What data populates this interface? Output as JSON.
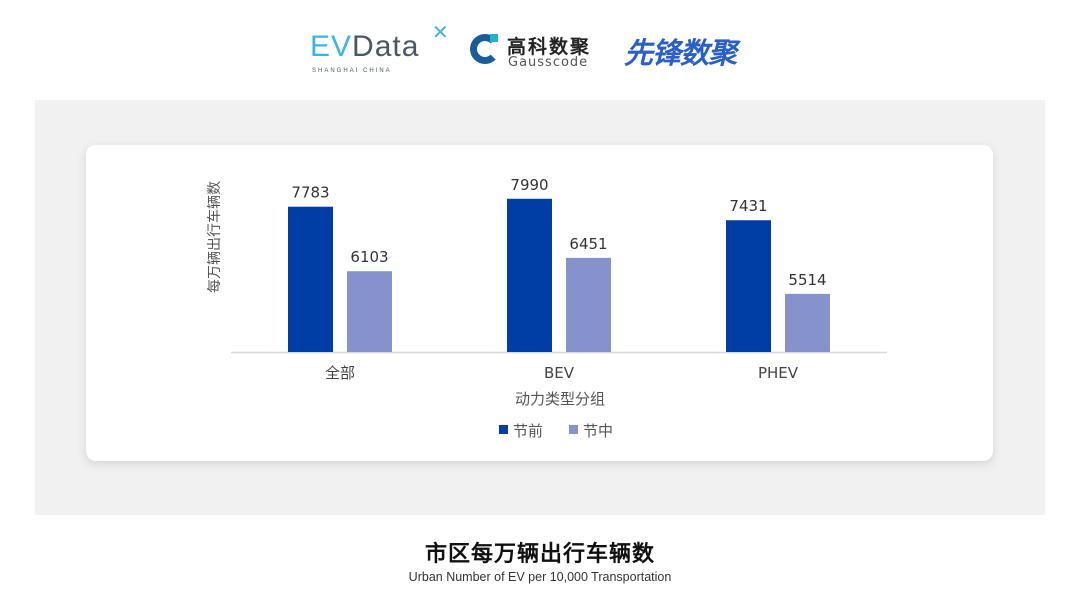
{
  "logos": {
    "evdata": {
      "ev": "EV",
      "data": "Data",
      "tagline": "SHANGHAI CHINA"
    },
    "gausscode": {
      "cn": "高科数聚",
      "en": "Gausscode"
    },
    "xianfeng": {
      "cn": "先锋数聚"
    }
  },
  "title": "市区每万辆出行车辆数",
  "subtitle": "Urban Number of EV per 10,000 Transportation",
  "colors": {
    "series_before": "#003da5",
    "series_during": "#8592cc",
    "panel": "#f1f1f1"
  },
  "chart_data": {
    "type": "bar",
    "title": "",
    "xlabel": "动力类型分组",
    "ylabel": "每万辆出行车辆数",
    "categories": [
      "全部",
      "BEV",
      "PHEV"
    ],
    "series": [
      {
        "name": "节前",
        "values": [
          7783,
          7990,
          7431
        ],
        "color": "#003da5"
      },
      {
        "name": "节中",
        "values": [
          6103,
          6451,
          5514
        ],
        "color": "#8592cc"
      }
    ],
    "ylim": [
      4000,
      9000
    ],
    "y_axis_visible": false,
    "grid": false,
    "data_labels": true,
    "legend": "bottom-center"
  }
}
